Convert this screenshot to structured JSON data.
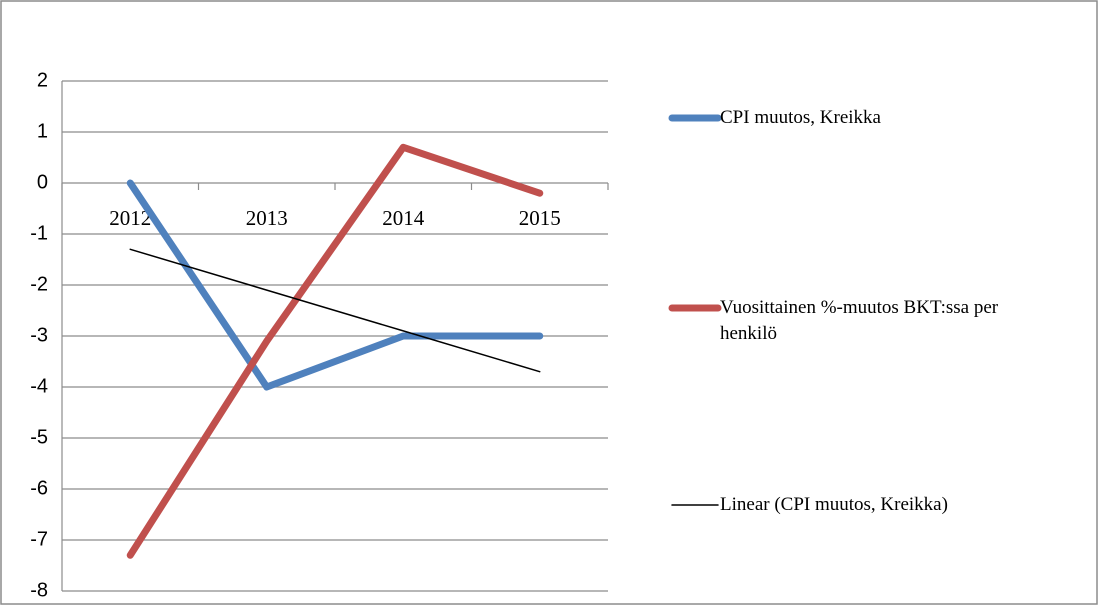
{
  "chart_data": {
    "type": "line",
    "categories": [
      "2012",
      "2013",
      "2014",
      "2015"
    ],
    "series": [
      {
        "name": "CPI muutos, Kreikka",
        "color": "#4f81bd",
        "values": [
          0,
          -4,
          -3,
          -3
        ]
      },
      {
        "name": "Vuosittainen %-muutos BKT:ssa per henkilö",
        "color": "#c0504d",
        "values": [
          -7.3,
          -3.1,
          0.7,
          -0.2
        ]
      },
      {
        "name": "Linear (CPI muutos, Kreikka)",
        "color": "#000000",
        "values": [
          -1.3,
          -2.1,
          -2.9,
          -3.7
        ]
      }
    ],
    "ylim": [
      -8,
      2
    ],
    "yticks": [
      -8,
      -7,
      -6,
      -5,
      -4,
      -3,
      -2,
      -1,
      0,
      1,
      2
    ],
    "grid": true,
    "legend": "right"
  }
}
